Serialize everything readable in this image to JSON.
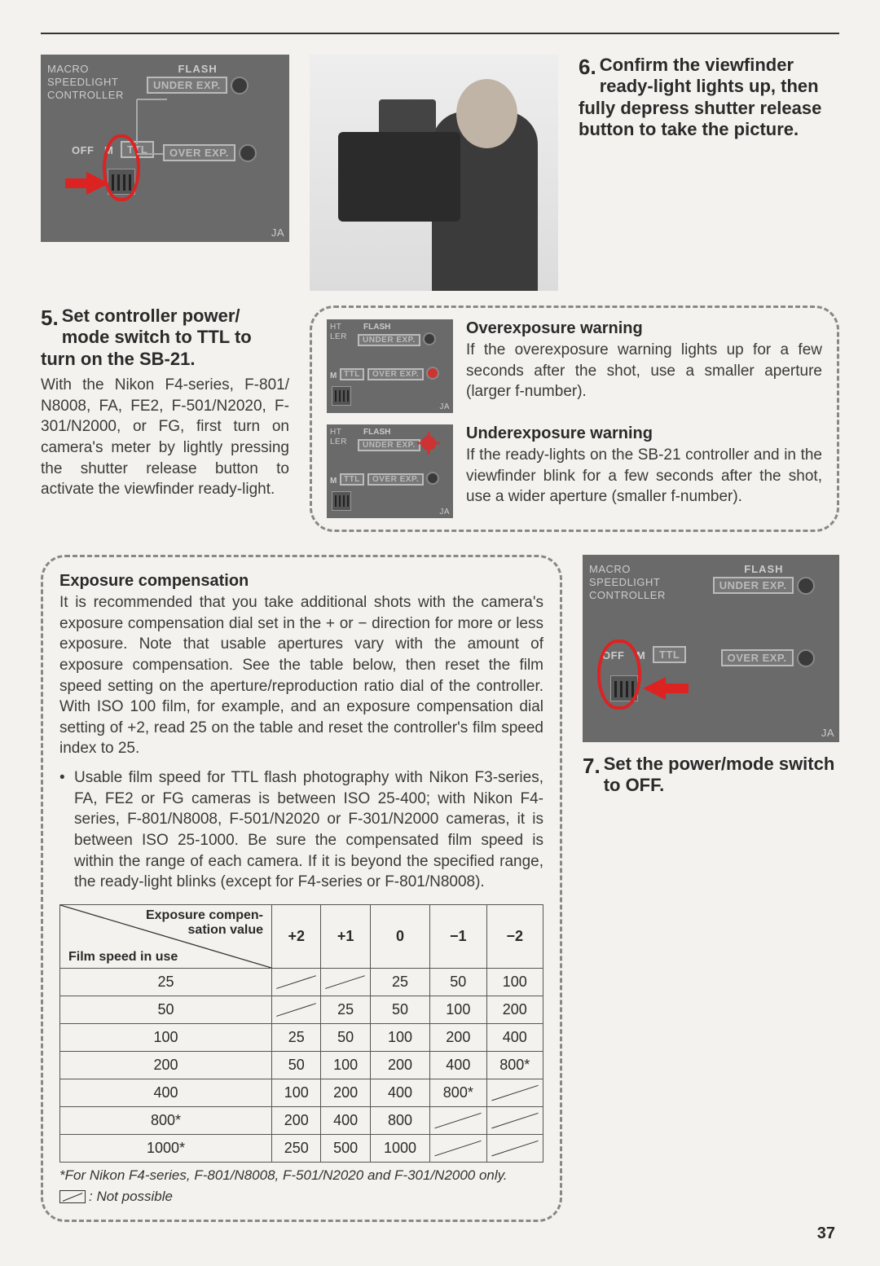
{
  "controller_labels": {
    "macro": "MACRO",
    "speedlight": "SPEEDLIGHT",
    "controller": "CONTROLLER",
    "flash": "FLASH",
    "under": "UNDER EXP.",
    "over": "OVER EXP.",
    "off": "OFF",
    "m": "M",
    "ttl": "TTL",
    "ja": "JA"
  },
  "step5": {
    "num": "5.",
    "title": "Set controller power/ mode switch to TTL to turn on the SB-21.",
    "body": "With the Nikon F4-series, F-801/ N8008, FA, FE2, F-501/N2020, F-301/N2000, or FG, first turn on camera's meter by lightly pressing the shutter release button to activate the viewfinder ready-light."
  },
  "step6": {
    "num": "6.",
    "title": "Confirm the viewfinder ready-light lights up, then fully depress shutter release button to take the picture."
  },
  "over_warn": {
    "title": "Overexposure warning",
    "body": "If the overexposure warning lights up for a few seconds after the shot, use a smaller aperture (larger f-number)."
  },
  "under_warn": {
    "title": "Underexposure warning",
    "body": "If the ready-lights on the SB-21 controller and in the viewfinder blink for a few seconds after the shot, use a wider aperture (smaller f-number)."
  },
  "exp_comp": {
    "title": "Exposure compensation",
    "body": "It is recommended that you take additional shots with the camera's exposure compensation dial set in the + or − direction for more or less exposure. Note that usable apertures vary with the amount of exposure compensation. See the table below, then reset the film speed setting on the aperture/reproduction ratio dial of the controller. With ISO 100 film, for example, and an exposure compensation dial setting of +2, read 25 on the table and reset the controller's film speed index to 25.",
    "bullet": "Usable film speed for TTL flash photography with Nikon F3-series, FA, FE2 or FG cameras is between ISO 25-400; with Nikon F4-series, F-801/N8008, F-501/N2020 or F-301/N2000 cameras, it is between ISO 25-1000. Be sure the compensated film speed is within the range of each camera. If it is beyond the specified range, the ready-light blinks (except for F4-series or F-801/N8008)."
  },
  "table": {
    "diag_top": "Exposure compen-\nsation value",
    "diag_bot": "Film speed in use",
    "cols": [
      "+2",
      "+1",
      "0",
      "−1",
      "−2"
    ],
    "rows": [
      {
        "speed": "25",
        "cells": [
          "/",
          "/",
          "25",
          "50",
          "100"
        ]
      },
      {
        "speed": "50",
        "cells": [
          "/",
          "25",
          "50",
          "100",
          "200"
        ]
      },
      {
        "speed": "100",
        "cells": [
          "25",
          "50",
          "100",
          "200",
          "400"
        ]
      },
      {
        "speed": "200",
        "cells": [
          "50",
          "100",
          "200",
          "400",
          "800*"
        ]
      },
      {
        "speed": "400",
        "cells": [
          "100",
          "200",
          "400",
          "800*",
          "/"
        ]
      },
      {
        "speed": "800*",
        "cells": [
          "200",
          "400",
          "800",
          "/",
          "/"
        ]
      },
      {
        "speed": "1000*",
        "cells": [
          "250",
          "500",
          "1000",
          "/",
          "/"
        ]
      }
    ],
    "footnote1": "*For Nikon F4-series, F-801/N8008, F-501/N2020 and F-301/N2000 only.",
    "footnote2": ": Not possible"
  },
  "step7": {
    "num": "7.",
    "title": "Set the power/mode switch to OFF."
  },
  "page_number": "37",
  "colors": {
    "red": "#d22222",
    "panel": "#6a6a6a"
  }
}
